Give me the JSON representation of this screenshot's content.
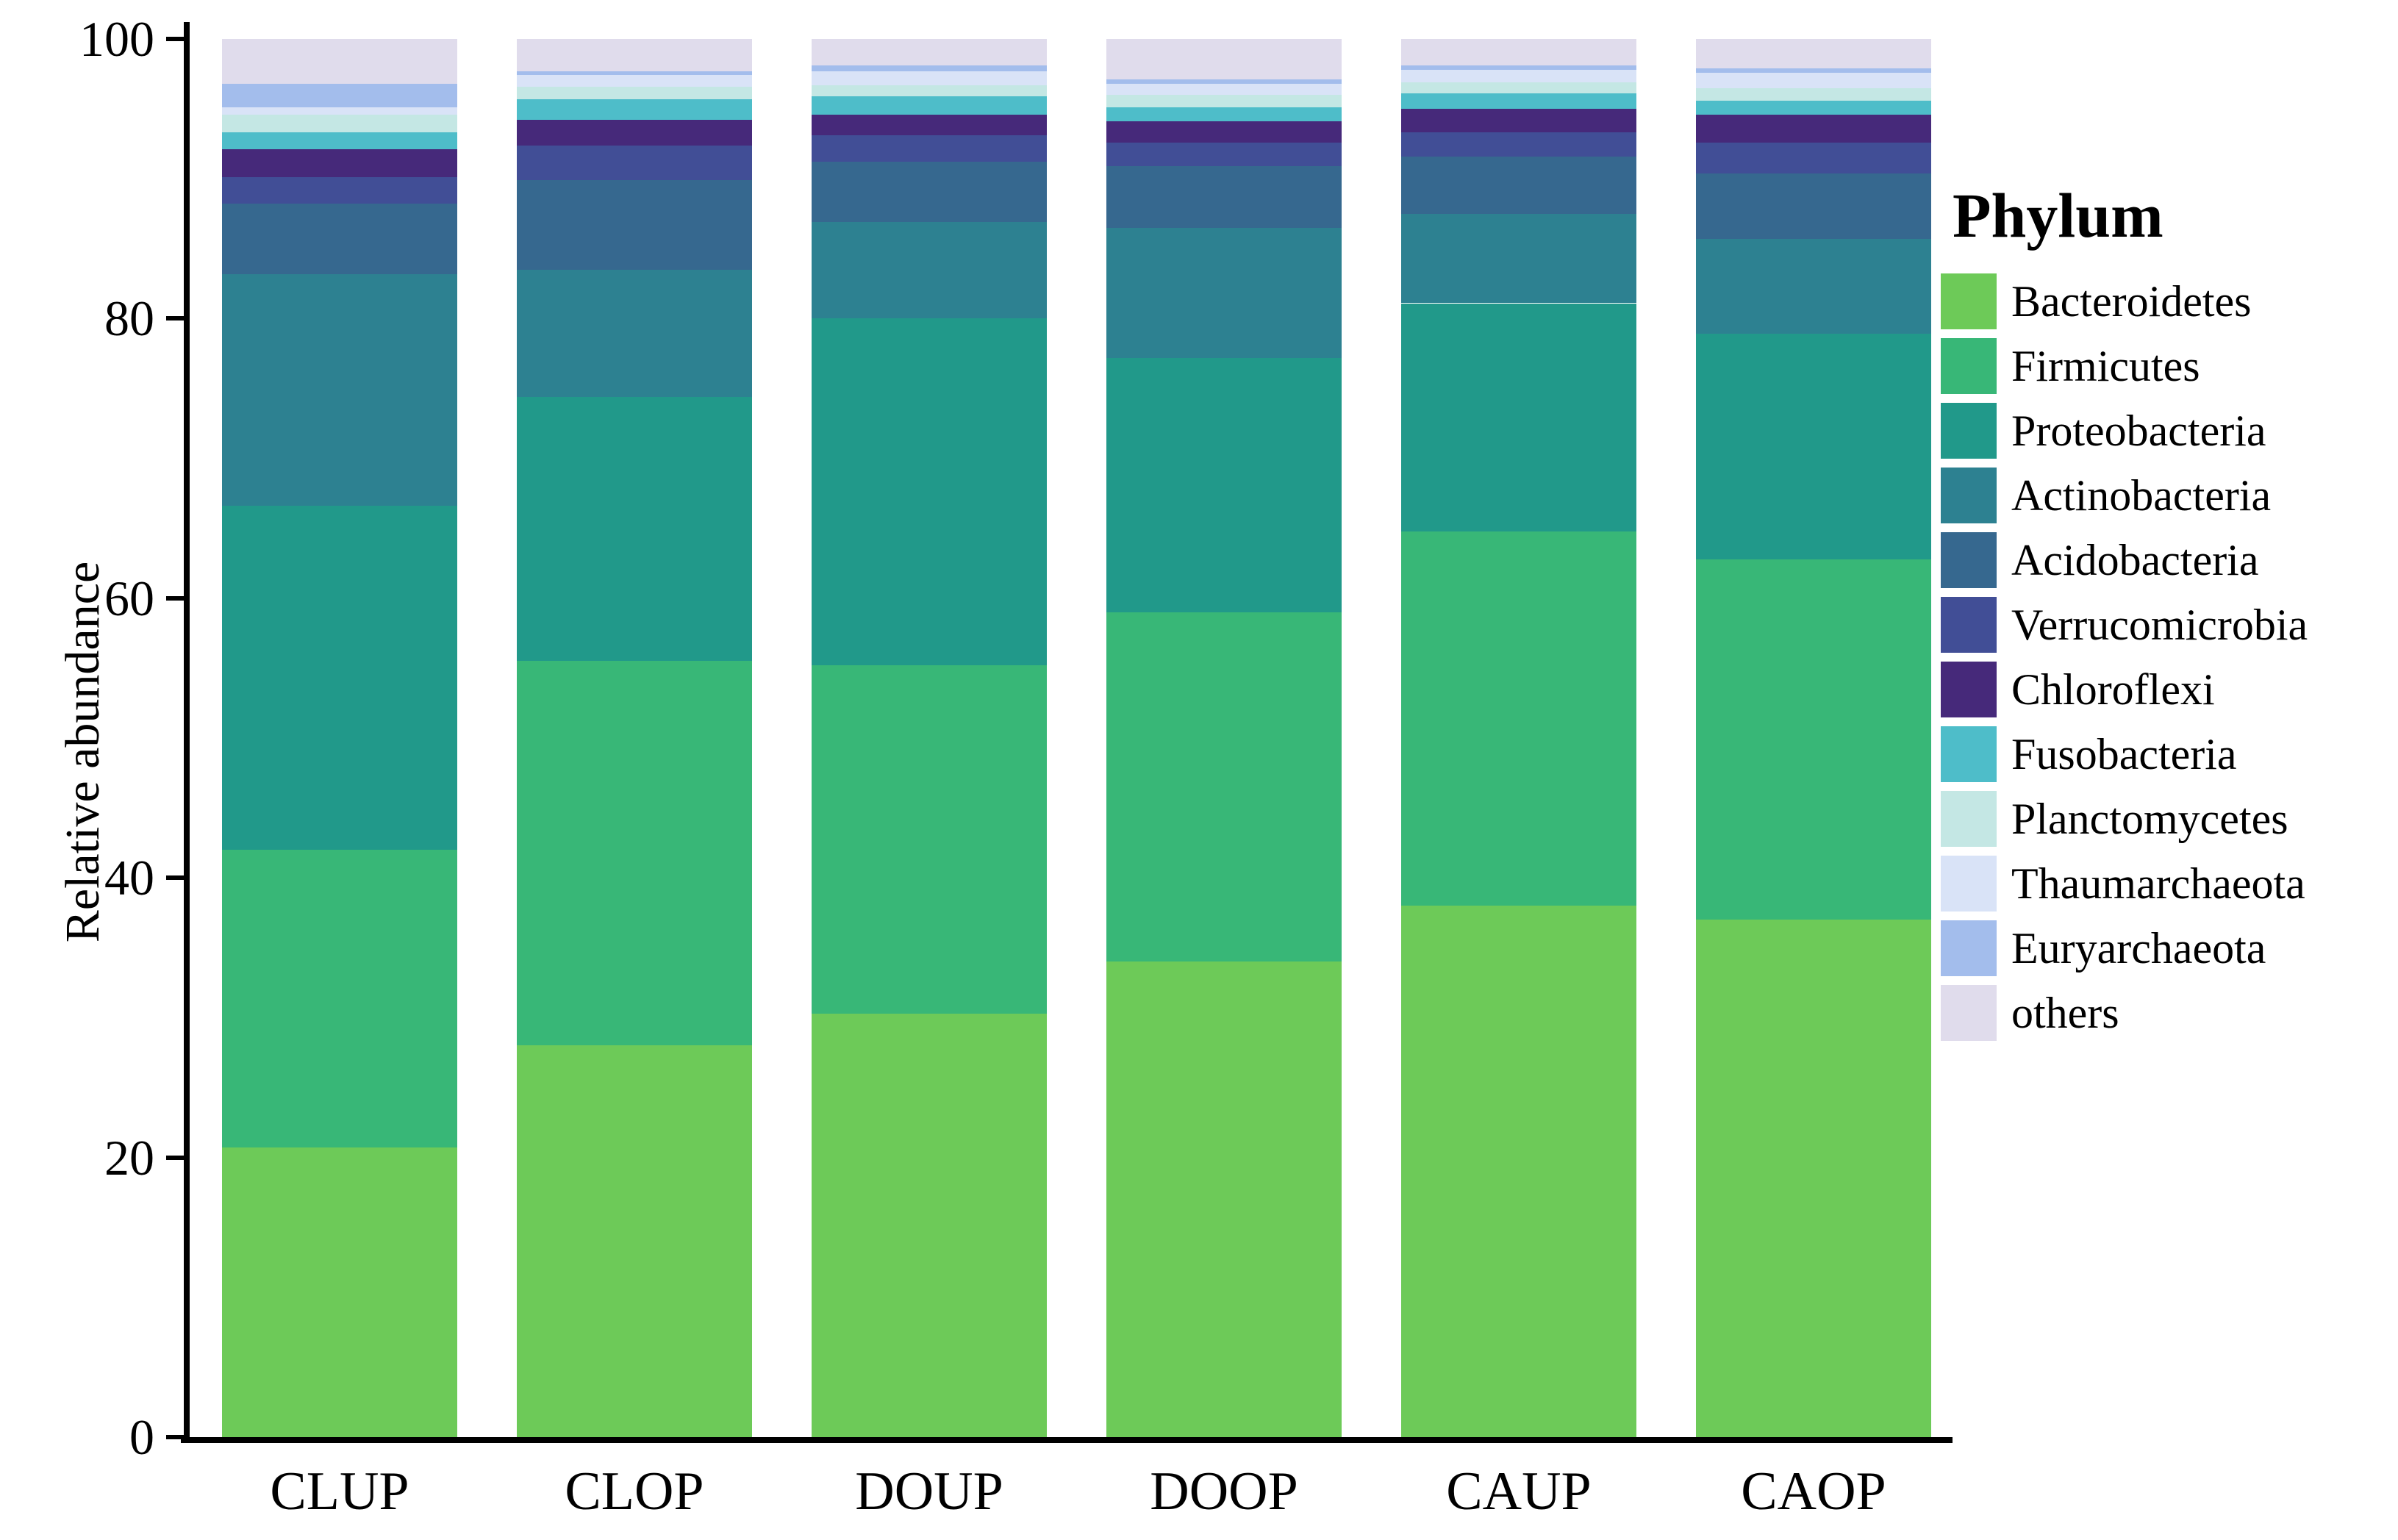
{
  "chart_data": {
    "type": "bar",
    "subtype": "stacked-percent",
    "title": "",
    "ylabel": "Relative abundance",
    "xlabel": "",
    "ylim": [
      0,
      100
    ],
    "yticks": [
      0,
      20,
      40,
      60,
      80,
      100
    ],
    "grid": false,
    "legend_title": "Phylum",
    "legend_position": "right",
    "categories": [
      "CLUP",
      "CLOP",
      "DOUP",
      "DOOP",
      "CAUP",
      "CAOP"
    ],
    "series": [
      {
        "name": "Bacteroidetes",
        "color": "#6dca58",
        "values": [
          20.7,
          28.0,
          30.3,
          34.0,
          38.0,
          37.0
        ]
      },
      {
        "name": "Firmicutes",
        "color": "#38b777",
        "values": [
          21.3,
          27.5,
          24.9,
          25.0,
          26.8,
          25.8
        ]
      },
      {
        "name": "Proteobacteria",
        "color": "#21998a",
        "values": [
          24.6,
          18.9,
          24.8,
          18.2,
          16.3,
          16.1
        ]
      },
      {
        "name": "Actinobacteria",
        "color": "#2d8191",
        "values": [
          16.6,
          9.1,
          6.9,
          9.3,
          6.4,
          6.8
        ]
      },
      {
        "name": "Acidobacteria",
        "color": "#36688f",
        "values": [
          5.0,
          6.4,
          4.3,
          4.4,
          4.1,
          4.7
        ]
      },
      {
        "name": "Verrucomicrobia",
        "color": "#414e96",
        "values": [
          1.9,
          2.5,
          1.9,
          1.7,
          1.7,
          2.2
        ]
      },
      {
        "name": "Chloroflexi",
        "color": "#46297a",
        "values": [
          2.0,
          1.8,
          1.5,
          1.5,
          1.7,
          2.0
        ]
      },
      {
        "name": "Fusobacteria",
        "color": "#4ebdc9",
        "values": [
          1.2,
          1.5,
          1.3,
          1.0,
          1.1,
          1.0
        ]
      },
      {
        "name": "Planctomycetes",
        "color": "#c4e7e4",
        "values": [
          1.3,
          0.9,
          0.8,
          0.9,
          0.8,
          0.9
        ]
      },
      {
        "name": "Thaumarchaeota",
        "color": "#d9e3f7",
        "values": [
          0.5,
          0.8,
          1.0,
          0.8,
          0.9,
          1.1
        ]
      },
      {
        "name": "Euryarchaeota",
        "color": "#a3bdec",
        "values": [
          1.7,
          0.3,
          0.4,
          0.3,
          0.3,
          0.3
        ]
      },
      {
        "name": "others",
        "color": "#e0dcec",
        "values": [
          3.2,
          2.3,
          1.9,
          2.9,
          1.9,
          2.1
        ]
      }
    ],
    "axis_color": "#000000",
    "text_color": "#000000"
  }
}
